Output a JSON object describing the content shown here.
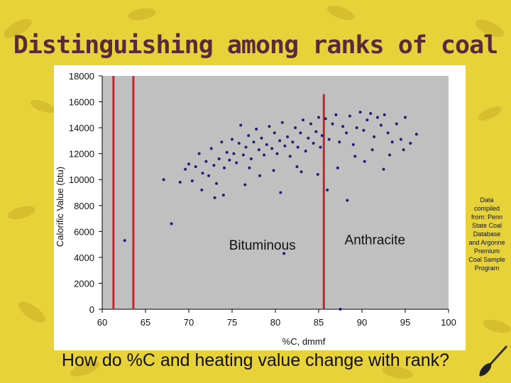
{
  "slide": {
    "title": "Distinguishing among ranks of coal",
    "question": "How do %C and heating value change with rank?",
    "source_note": "Data compiled from: Penn State Coal Database and Argonne Premium Coal Sample Program"
  },
  "colors": {
    "background": "#e8d23a",
    "title": "#5a2a3a",
    "points": "#1f1f7a",
    "boundary_lines": "#c0282d",
    "plot_area": "#c0c0c0"
  },
  "chart_data": {
    "type": "scatter",
    "title": "",
    "xlabel": "%C, dmmf",
    "ylabel": "Calorific Value (btu)",
    "xlim": [
      60,
      100
    ],
    "ylim": [
      0,
      18000
    ],
    "x_ticks": [
      "60",
      "65",
      "70",
      "75",
      "80",
      "85",
      "90",
      "95",
      "100"
    ],
    "y_ticks": [
      "0",
      "2000",
      "4000",
      "6000",
      "8000",
      "10000",
      "12000",
      "14000",
      "16000",
      "18000"
    ],
    "grid": false,
    "vertical_lines": [
      {
        "x": 61.3,
        "y0": 0,
        "y1": 18000
      },
      {
        "x": 63.6,
        "y0": 0,
        "y1": 18000
      },
      {
        "x": 85.6,
        "y0": 0,
        "y1": 16600
      }
    ],
    "annotations": [
      {
        "text": "Bituminous",
        "x": 78.5,
        "y": 4600
      },
      {
        "text": "Anthracite",
        "x": 91.5,
        "y": 5000
      }
    ],
    "series": [
      {
        "points": [
          [
            62.6,
            5300
          ],
          [
            67.1,
            10000
          ],
          [
            68.0,
            6600
          ],
          [
            81.0,
            4300
          ],
          [
            87.5,
            0
          ],
          [
            69.0,
            9800
          ],
          [
            69.6,
            10800
          ],
          [
            70.0,
            11200
          ],
          [
            70.4,
            9900
          ],
          [
            70.8,
            11000
          ],
          [
            71.2,
            12000
          ],
          [
            71.6,
            10500
          ],
          [
            72.0,
            11400
          ],
          [
            72.3,
            10300
          ],
          [
            72.6,
            12400
          ],
          [
            72.9,
            11100
          ],
          [
            73.2,
            9700
          ],
          [
            73.5,
            11600
          ],
          [
            73.8,
            12900
          ],
          [
            74.1,
            10900
          ],
          [
            74.4,
            12100
          ],
          [
            74.7,
            11500
          ],
          [
            75.0,
            13100
          ],
          [
            75.2,
            12000
          ],
          [
            75.5,
            11300
          ],
          [
            75.8,
            12800
          ],
          [
            76.0,
            14200
          ],
          [
            76.3,
            11900
          ],
          [
            76.6,
            12500
          ],
          [
            76.9,
            13400
          ],
          [
            77.2,
            11600
          ],
          [
            77.5,
            12900
          ],
          [
            77.8,
            13900
          ],
          [
            78.1,
            12300
          ],
          [
            78.4,
            13200
          ],
          [
            78.7,
            11900
          ],
          [
            79.0,
            12700
          ],
          [
            79.3,
            14100
          ],
          [
            79.6,
            12400
          ],
          [
            79.9,
            13600
          ],
          [
            80.2,
            12000
          ],
          [
            80.5,
            13000
          ],
          [
            80.8,
            14400
          ],
          [
            81.1,
            12600
          ],
          [
            81.4,
            13300
          ],
          [
            81.7,
            11800
          ],
          [
            82.0,
            12900
          ],
          [
            82.3,
            14000
          ],
          [
            82.6,
            12500
          ],
          [
            82.9,
            13600
          ],
          [
            83.2,
            14600
          ],
          [
            83.5,
            12200
          ],
          [
            83.8,
            13200
          ],
          [
            84.1,
            14300
          ],
          [
            84.4,
            12800
          ],
          [
            84.7,
            13700
          ],
          [
            85.0,
            14800
          ],
          [
            85.2,
            12500
          ],
          [
            85.4,
            13400
          ],
          [
            85.8,
            14700
          ],
          [
            86.2,
            13100
          ],
          [
            86.6,
            14300
          ],
          [
            87.0,
            15000
          ],
          [
            87.4,
            12900
          ],
          [
            87.8,
            14100
          ],
          [
            88.2,
            13600
          ],
          [
            88.6,
            14900
          ],
          [
            89.0,
            12700
          ],
          [
            89.4,
            14000
          ],
          [
            89.8,
            15200
          ],
          [
            90.2,
            13800
          ],
          [
            90.6,
            14600
          ],
          [
            91.0,
            15100
          ],
          [
            91.4,
            13300
          ],
          [
            91.8,
            14800
          ],
          [
            92.2,
            14200
          ],
          [
            92.6,
            15000
          ],
          [
            93.0,
            13600
          ],
          [
            93.5,
            12900
          ],
          [
            94.0,
            14300
          ],
          [
            94.5,
            13100
          ],
          [
            95.0,
            14800
          ],
          [
            95.6,
            12800
          ],
          [
            96.3,
            13500
          ],
          [
            74.0,
            8800
          ],
          [
            76.5,
            9600
          ],
          [
            78.2,
            10300
          ],
          [
            80.6,
            9000
          ],
          [
            83.0,
            10600
          ],
          [
            86.0,
            9200
          ],
          [
            88.3,
            8400
          ],
          [
            90.3,
            11400
          ],
          [
            92.5,
            10800
          ],
          [
            71.5,
            9200
          ],
          [
            73.0,
            8600
          ],
          [
            77.0,
            10900
          ],
          [
            79.8,
            10700
          ],
          [
            82.5,
            11000
          ],
          [
            84.9,
            10400
          ],
          [
            87.2,
            10900
          ],
          [
            89.2,
            11800
          ],
          [
            91.2,
            12300
          ],
          [
            93.2,
            11900
          ],
          [
            94.8,
            12300
          ]
        ]
      }
    ]
  }
}
